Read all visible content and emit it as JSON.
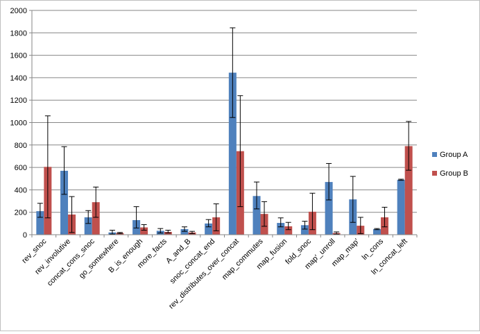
{
  "chart_data": {
    "type": "bar",
    "title": "",
    "xlabel": "",
    "ylabel": "",
    "ylim": [
      0,
      2000
    ],
    "yticks": [
      0,
      200,
      400,
      600,
      800,
      1000,
      1200,
      1400,
      1600,
      1800,
      2000
    ],
    "grid": "horizontal",
    "legend_position": "right",
    "categories": [
      "rev_snoc",
      "rev_involutive",
      "concat_cons_snoc",
      "go_somewhere",
      "B_is_enough",
      "more_facts",
      "A_and_B",
      "snoc_concat_end",
      "rev_distributes_over_concat",
      "map_commutes",
      "map_fusion",
      "fold_snoc",
      "map'_unroll",
      "map_map'",
      "ln_cons",
      "ln_concat_left"
    ],
    "series": [
      {
        "name": "Group A",
        "color": "#4f81bd",
        "values": [
          210,
          570,
          155,
          20,
          130,
          35,
          50,
          100,
          1445,
          345,
          105,
          85,
          470,
          315,
          50,
          490
        ],
        "error_low": [
          155,
          360,
          100,
          5,
          60,
          15,
          30,
          70,
          1045,
          230,
          70,
          50,
          310,
          110,
          45,
          485
        ],
        "error_high": [
          280,
          785,
          215,
          40,
          250,
          55,
          70,
          135,
          1845,
          470,
          150,
          120,
          635,
          520,
          55,
          495
        ]
      },
      {
        "name": "Group B",
        "color": "#c0504d",
        "values": [
          605,
          180,
          290,
          15,
          65,
          25,
          20,
          155,
          745,
          185,
          75,
          205,
          15,
          80,
          155,
          790
        ],
        "error_low": [
          150,
          20,
          155,
          10,
          40,
          15,
          10,
          35,
          250,
          75,
          45,
          45,
          5,
          10,
          70,
          575
        ],
        "error_high": [
          1060,
          340,
          425,
          20,
          90,
          40,
          30,
          275,
          1240,
          295,
          110,
          370,
          25,
          155,
          245,
          1010
        ]
      }
    ]
  }
}
